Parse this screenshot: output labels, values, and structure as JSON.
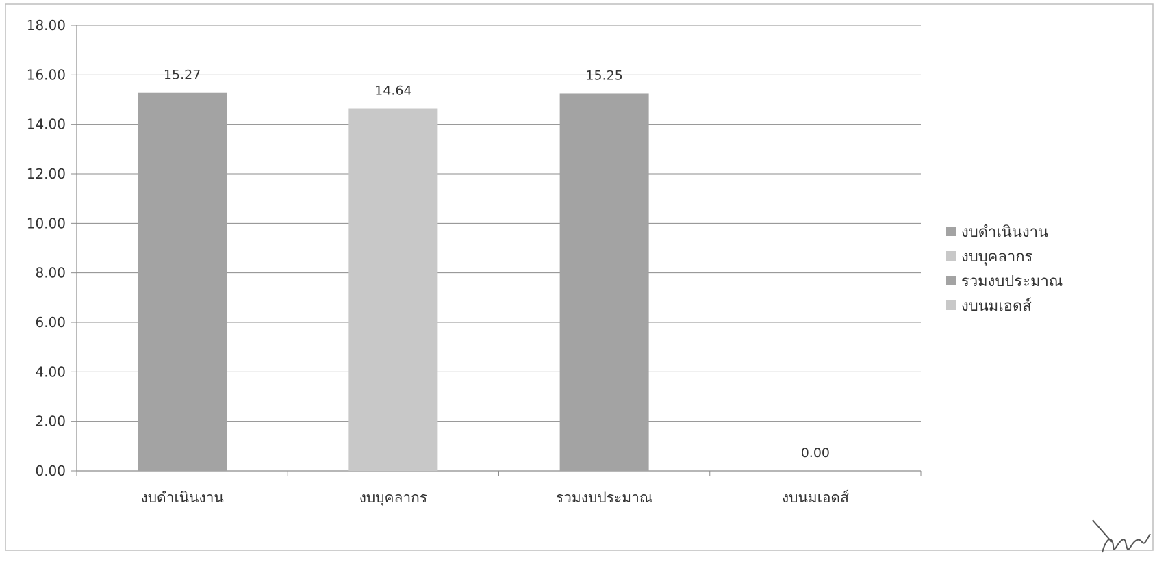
{
  "chart_data": {
    "type": "bar",
    "categories": [
      "งบดำเนินงาน",
      "งบบุคลากร",
      "รวมงบประมาณ",
      "งบนมเอดส์"
    ],
    "values": [
      15.27,
      14.64,
      15.25,
      0.0
    ],
    "data_labels": [
      "15.27",
      "14.64",
      "15.25",
      "0.00"
    ],
    "bar_colors": [
      "#a3a3a3",
      "#c8c8c8",
      "#a3a3a3",
      "#c8c8c8"
    ],
    "y_ticks": [
      "0.00",
      "2.00",
      "4.00",
      "6.00",
      "8.00",
      "10.00",
      "12.00",
      "14.00",
      "16.00",
      "18.00"
    ],
    "ylim": [
      0,
      18
    ],
    "grid": true,
    "legend": {
      "placement": "right",
      "entries": [
        {
          "label": "งบดำเนินงาน",
          "color": "#a3a3a3"
        },
        {
          "label": "งบบุคลากร",
          "color": "#c8c8c8"
        },
        {
          "label": "รวมงบประมาณ",
          "color": "#a3a3a3"
        },
        {
          "label": "งบนมเอดส์",
          "color": "#c8c8c8"
        }
      ]
    },
    "title": "",
    "xlabel": "",
    "ylabel": ""
  }
}
